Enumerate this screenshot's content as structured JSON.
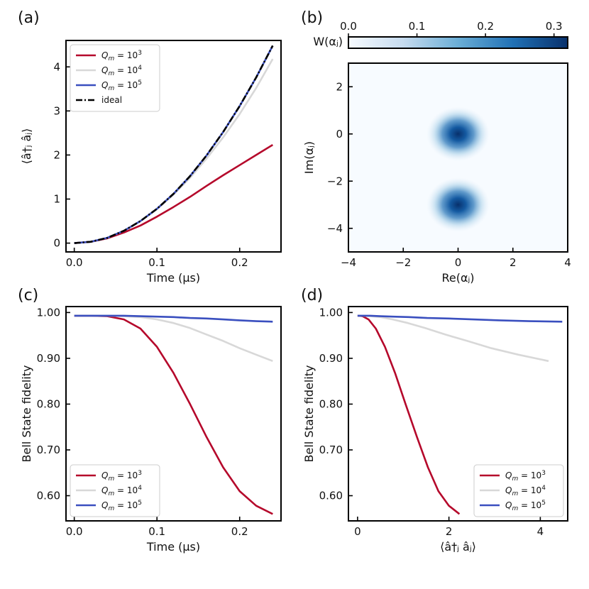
{
  "chart_data": [
    {
      "id": "a",
      "panel_label": "(a)",
      "type": "line",
      "xlabel": "Time (μs)",
      "ylabel": "⟨â†ⱼ âⱼ⟩",
      "xlim": [
        -0.01,
        0.25
      ],
      "ylim": [
        -0.2,
        4.6
      ],
      "xticks": [
        0.0,
        0.1,
        0.2
      ],
      "yticks": [
        0,
        1,
        2,
        3,
        4
      ],
      "legend_position": "top-left",
      "series": [
        {
          "name": "Q_m = 10^3",
          "color": "#b5082b",
          "dash": "",
          "x": [
            0.0,
            0.02,
            0.04,
            0.06,
            0.08,
            0.1,
            0.12,
            0.14,
            0.16,
            0.18,
            0.2,
            0.22,
            0.24
          ],
          "y": [
            0.0,
            0.03,
            0.11,
            0.24,
            0.4,
            0.6,
            0.82,
            1.05,
            1.3,
            1.54,
            1.77,
            2.0,
            2.23
          ]
        },
        {
          "name": "Q_m = 10^4",
          "color": "#d8d8d8",
          "dash": "",
          "x": [
            0.0,
            0.02,
            0.04,
            0.06,
            0.08,
            0.1,
            0.12,
            0.14,
            0.16,
            0.18,
            0.2,
            0.22,
            0.24
          ],
          "y": [
            0.0,
            0.03,
            0.12,
            0.28,
            0.5,
            0.77,
            1.1,
            1.48,
            1.92,
            2.4,
            2.93,
            3.52,
            4.18
          ]
        },
        {
          "name": "Q_m = 10^5",
          "color": "#3a4fbf",
          "dash": "",
          "x": [
            0.0,
            0.02,
            0.04,
            0.06,
            0.08,
            0.1,
            0.12,
            0.14,
            0.16,
            0.18,
            0.2,
            0.22,
            0.24
          ],
          "y": [
            0.0,
            0.03,
            0.12,
            0.28,
            0.5,
            0.78,
            1.12,
            1.52,
            1.99,
            2.52,
            3.11,
            3.76,
            4.48
          ]
        },
        {
          "name": "ideal",
          "color": "#000000",
          "dash": "9,3,2,3",
          "x": [
            0.0,
            0.02,
            0.04,
            0.06,
            0.08,
            0.1,
            0.12,
            0.14,
            0.16,
            0.18,
            0.2,
            0.22,
            0.24
          ],
          "y": [
            0.0,
            0.03,
            0.12,
            0.28,
            0.5,
            0.78,
            1.12,
            1.52,
            1.99,
            2.52,
            3.11,
            3.76,
            4.48
          ]
        }
      ]
    },
    {
      "id": "b",
      "panel_label": "(b)",
      "type": "heatmap",
      "xlabel": "Re(αⱼ)",
      "ylabel": "Im(αⱼ)",
      "xlim": [
        -4,
        4
      ],
      "ylim": [
        -5,
        3
      ],
      "xticks": [
        -4,
        -2,
        0,
        2,
        4
      ],
      "yticks": [
        -4,
        -2,
        0,
        2
      ],
      "colorbar": {
        "label": "W(αⱼ)",
        "min": 0.0,
        "max": 0.32,
        "ticks": [
          0.0,
          0.1,
          0.2,
          0.3
        ],
        "position": "top"
      },
      "peaks": [
        {
          "re": 0,
          "im": 0,
          "value": 0.32
        },
        {
          "re": 0,
          "im": -3,
          "value": 0.32
        }
      ]
    },
    {
      "id": "c",
      "panel_label": "(c)",
      "type": "line",
      "xlabel": "Time (μs)",
      "ylabel": "Bell State fidelity",
      "xlim": [
        -0.01,
        0.25
      ],
      "ylim": [
        0.545,
        1.013
      ],
      "xticks": [
        0.0,
        0.1,
        0.2
      ],
      "yticks": [
        0.6,
        0.7,
        0.8,
        0.9,
        1.0
      ],
      "legend_position": "bottom-left",
      "series": [
        {
          "name": "Q_m = 10^3",
          "color": "#b5082b",
          "dash": "",
          "x": [
            0.0,
            0.02,
            0.04,
            0.06,
            0.08,
            0.1,
            0.12,
            0.14,
            0.16,
            0.18,
            0.2,
            0.22,
            0.24
          ],
          "y": [
            0.993,
            0.993,
            0.992,
            0.985,
            0.965,
            0.925,
            0.868,
            0.8,
            0.728,
            0.662,
            0.61,
            0.578,
            0.56
          ]
        },
        {
          "name": "Q_m = 10^4",
          "color": "#d8d8d8",
          "dash": "",
          "x": [
            0.0,
            0.02,
            0.04,
            0.06,
            0.08,
            0.1,
            0.12,
            0.14,
            0.16,
            0.18,
            0.2,
            0.22,
            0.24
          ],
          "y": [
            0.993,
            0.993,
            0.993,
            0.992,
            0.99,
            0.985,
            0.977,
            0.966,
            0.952,
            0.938,
            0.922,
            0.908,
            0.894
          ]
        },
        {
          "name": "Q_m = 10^5",
          "color": "#3a4fbf",
          "dash": "",
          "x": [
            0.0,
            0.02,
            0.04,
            0.06,
            0.08,
            0.1,
            0.12,
            0.14,
            0.16,
            0.18,
            0.2,
            0.22,
            0.24
          ],
          "y": [
            0.993,
            0.993,
            0.993,
            0.993,
            0.992,
            0.991,
            0.99,
            0.988,
            0.987,
            0.985,
            0.983,
            0.981,
            0.98
          ]
        }
      ]
    },
    {
      "id": "d",
      "panel_label": "(d)",
      "type": "line",
      "xlabel": "⟨â†ⱼ âⱼ⟩",
      "ylabel": "Bell State fidelity",
      "xlim": [
        -0.2,
        4.6
      ],
      "ylim": [
        0.545,
        1.013
      ],
      "xticks": [
        0,
        2,
        4
      ],
      "yticks": [
        0.6,
        0.7,
        0.8,
        0.9,
        1.0
      ],
      "legend_position": "bottom-right",
      "series": [
        {
          "name": "Q_m = 10^3",
          "color": "#b5082b",
          "dash": "",
          "x": [
            0.0,
            0.03,
            0.11,
            0.24,
            0.4,
            0.6,
            0.82,
            1.05,
            1.3,
            1.54,
            1.77,
            2.0,
            2.23
          ],
          "y": [
            0.993,
            0.993,
            0.992,
            0.985,
            0.965,
            0.925,
            0.868,
            0.8,
            0.728,
            0.662,
            0.61,
            0.578,
            0.56
          ]
        },
        {
          "name": "Q_m = 10^4",
          "color": "#d8d8d8",
          "dash": "",
          "x": [
            0.0,
            0.03,
            0.12,
            0.28,
            0.5,
            0.77,
            1.1,
            1.48,
            1.92,
            2.4,
            2.93,
            3.52,
            4.18
          ],
          "y": [
            0.993,
            0.993,
            0.993,
            0.992,
            0.99,
            0.985,
            0.977,
            0.966,
            0.952,
            0.938,
            0.922,
            0.908,
            0.894
          ]
        },
        {
          "name": "Q_m = 10^5",
          "color": "#3a4fbf",
          "dash": "",
          "x": [
            0.0,
            0.03,
            0.12,
            0.28,
            0.5,
            0.78,
            1.12,
            1.52,
            1.99,
            2.52,
            3.11,
            3.76,
            4.48
          ],
          "y": [
            0.993,
            0.993,
            0.993,
            0.993,
            0.992,
            0.991,
            0.99,
            0.988,
            0.987,
            0.985,
            0.983,
            0.981,
            0.98
          ]
        }
      ]
    }
  ]
}
